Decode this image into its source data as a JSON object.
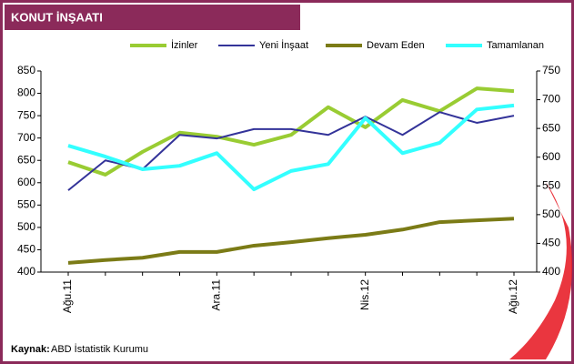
{
  "chart_data": {
    "type": "line",
    "title": "KONUT İNŞAATI",
    "categories": [
      "Ağu.11",
      null,
      null,
      null,
      "Ara.11",
      null,
      null,
      null,
      "Nis.12",
      null,
      null,
      null,
      "Ağu.12"
    ],
    "series": [
      {
        "name": "İzinler",
        "color": "#99cc33",
        "values": [
          646,
          618,
          669,
          712,
          703,
          685,
          707,
          769,
          724,
          785,
          760,
          811,
          805
        ]
      },
      {
        "name": "Yeni İnşaat",
        "color": "#333399",
        "values": [
          583,
          650,
          630,
          707,
          699,
          720,
          720,
          707,
          748,
          707,
          758,
          734,
          750
        ]
      },
      {
        "name": "Devam Eden",
        "color": "#7b7b16",
        "axis": "y2",
        "values": [
          416,
          421,
          425,
          435,
          435,
          446,
          452,
          459,
          465,
          474,
          487,
          490,
          493
        ]
      },
      {
        "name": "Tamamlanan",
        "color": "#33ffff",
        "axis": "y2",
        "values": [
          620,
          601,
          579,
          585,
          607,
          544,
          576,
          588,
          668,
          607,
          625,
          683,
          690
        ]
      }
    ],
    "ylim": [
      400,
      850
    ],
    "yticks": [
      400,
      450,
      500,
      550,
      600,
      650,
      700,
      750,
      800,
      850
    ],
    "y2lim": [
      400,
      750
    ],
    "y2ticks": [
      400,
      450,
      500,
      550,
      600,
      650,
      700,
      750
    ],
    "source_label": "Kaynak:",
    "source_text": "ABD İstatistik Kurumu"
  }
}
